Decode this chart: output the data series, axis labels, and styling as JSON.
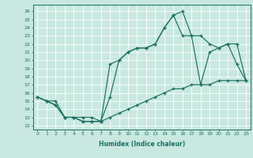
{
  "xlabel": "Humidex (Indice chaleur)",
  "bg_color": "#c8e8e0",
  "line_color": "#1a6e62",
  "grid_color": "#ffffff",
  "xlim": [
    -0.5,
    23.5
  ],
  "ylim": [
    11.5,
    26.8
  ],
  "xticks": [
    0,
    1,
    2,
    3,
    4,
    5,
    6,
    7,
    8,
    9,
    10,
    11,
    12,
    13,
    14,
    15,
    16,
    17,
    18,
    19,
    20,
    21,
    22,
    23
  ],
  "yticks": [
    12,
    13,
    14,
    15,
    16,
    17,
    18,
    19,
    20,
    21,
    22,
    23,
    24,
    25,
    26
  ],
  "line1_x": [
    0,
    1,
    2,
    3,
    4,
    5,
    6,
    7,
    8,
    9,
    10,
    11,
    12,
    13,
    14,
    15,
    16,
    17,
    18,
    19,
    20,
    21,
    22,
    23
  ],
  "line1_y": [
    15.5,
    15.0,
    14.5,
    13.0,
    13.0,
    12.5,
    12.5,
    12.5,
    15.5,
    20.0,
    21.0,
    21.5,
    21.5,
    22.0,
    24.0,
    25.5,
    26.0,
    23.0,
    23.0,
    22.0,
    21.5,
    22.0,
    22.0,
    17.5
  ],
  "line2_x": [
    0,
    1,
    2,
    3,
    4,
    5,
    6,
    7,
    8,
    9,
    10,
    11,
    12,
    13,
    14,
    15,
    16,
    17,
    18,
    19,
    20,
    21,
    22,
    23
  ],
  "line2_y": [
    15.5,
    15.0,
    15.0,
    13.0,
    13.0,
    13.0,
    13.0,
    12.5,
    13.0,
    13.5,
    14.0,
    14.5,
    15.0,
    15.5,
    16.0,
    16.5,
    16.5,
    17.0,
    17.0,
    17.0,
    17.5,
    17.5,
    17.5,
    17.5
  ],
  "line3_x": [
    0,
    1,
    2,
    3,
    4,
    5,
    6,
    7,
    8,
    9,
    10,
    11,
    12,
    13,
    14,
    15,
    16,
    17,
    18,
    19,
    20,
    21,
    22,
    23
  ],
  "line3_y": [
    15.5,
    15.0,
    14.5,
    13.0,
    13.0,
    12.5,
    12.5,
    12.5,
    19.5,
    20.0,
    21.0,
    21.5,
    21.5,
    22.0,
    24.0,
    25.5,
    23.0,
    23.0,
    17.0,
    21.0,
    21.5,
    22.0,
    19.5,
    17.5
  ]
}
